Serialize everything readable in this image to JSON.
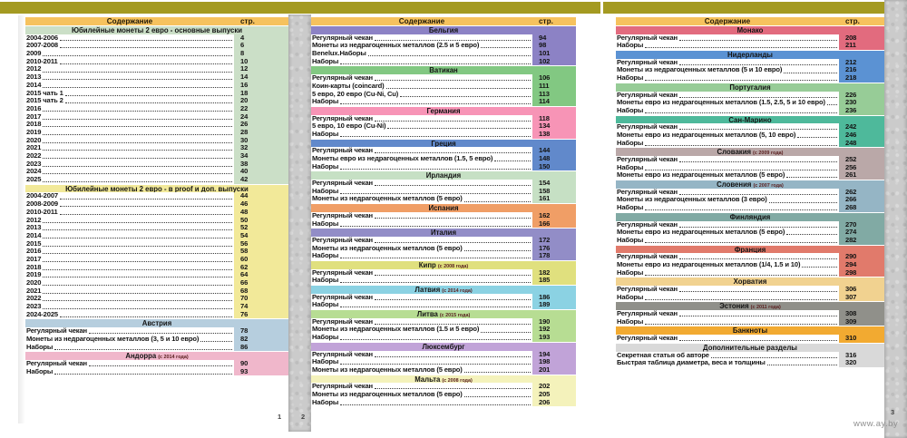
{
  "page": {
    "watermark": "www.ay.by",
    "scan_numbers": [
      "1",
      "2",
      "3"
    ],
    "top_band_color": "#a49a21",
    "header_bg": "#f6c25e",
    "gutter_color": "#cbcbcb"
  },
  "columns": [
    {
      "header": {
        "title": "Содержание",
        "page_label": "стр."
      },
      "sections": [
        {
          "title": "Юбилейные монеты 2 евро - основные выпуски",
          "note": "",
          "color": "#cbdfc7",
          "items": [
            {
              "label": "2004-2006",
              "page": "4"
            },
            {
              "label": "2007-2008",
              "page": "6"
            },
            {
              "label": "2009",
              "page": "8"
            },
            {
              "label": "2010-2011",
              "page": "10"
            },
            {
              "label": "2012",
              "page": "12"
            },
            {
              "label": "2013",
              "page": "14"
            },
            {
              "label": "2014",
              "page": "16"
            },
            {
              "label": "2015 чать 1",
              "page": "18"
            },
            {
              "label": "2015 чать 2",
              "page": "20"
            },
            {
              "label": "2016",
              "page": "22"
            },
            {
              "label": "2017",
              "page": "24"
            },
            {
              "label": "2018",
              "page": "26"
            },
            {
              "label": "2019",
              "page": "28"
            },
            {
              "label": "2020",
              "page": "30"
            },
            {
              "label": "2021",
              "page": "32"
            },
            {
              "label": "2022",
              "page": "34"
            },
            {
              "label": "2023",
              "page": "38"
            },
            {
              "label": "2024",
              "page": "40"
            },
            {
              "label": "2025",
              "page": "42"
            }
          ]
        },
        {
          "title": "Юбилейные монеты 2 евро - в proof и доп. выпуски",
          "note": "",
          "color": "#f2e999",
          "items": [
            {
              "label": "2004-2007",
              "page": "44"
            },
            {
              "label": "2008-2009",
              "page": "46"
            },
            {
              "label": "2010-2011",
              "page": "48"
            },
            {
              "label": "2012",
              "page": "50"
            },
            {
              "label": "2013",
              "page": "52"
            },
            {
              "label": "2014",
              "page": "54"
            },
            {
              "label": "2015",
              "page": "56"
            },
            {
              "label": "2016",
              "page": "58"
            },
            {
              "label": "2017",
              "page": "60"
            },
            {
              "label": "2018",
              "page": "62"
            },
            {
              "label": "2019",
              "page": "64"
            },
            {
              "label": "2020",
              "page": "66"
            },
            {
              "label": "2021",
              "page": "68"
            },
            {
              "label": "2022",
              "page": "70"
            },
            {
              "label": "2023",
              "page": "74"
            },
            {
              "label": "2024-2025",
              "page": "76"
            }
          ]
        },
        {
          "title": "Австрия",
          "note": "",
          "color": "#b6cede",
          "items": [
            {
              "label": "Регулярный чекан",
              "page": "78"
            },
            {
              "label": "Монеты из недрагоценных металлов (3, 5 и 10 евро)",
              "page": "82"
            },
            {
              "label": "Наборы",
              "page": "86"
            }
          ]
        },
        {
          "title": "Андорра",
          "note": "(с 2014 года)",
          "color": "#f0b7cb",
          "items": [
            {
              "label": "Регулярный чекан",
              "page": "90"
            },
            {
              "label": "Наборы",
              "page": "93"
            }
          ]
        }
      ]
    },
    {
      "header": {
        "title": "Содержание",
        "page_label": "стр."
      },
      "sections": [
        {
          "title": "Бельгия",
          "note": "",
          "color": "#8c82c5",
          "items": [
            {
              "label": "Регулярный чекан",
              "page": "94"
            },
            {
              "label": "Монеты из недрагоценных металлов (2.5 и 5 евро)",
              "page": "98"
            },
            {
              "label": "Benelux.Наборы",
              "page": "101"
            },
            {
              "label": "Наборы",
              "page": "102"
            }
          ]
        },
        {
          "title": "Ватикан",
          "note": "",
          "color": "#82c882",
          "items": [
            {
              "label": "Регулярный чекан",
              "page": "106"
            },
            {
              "label": "Коин-карты (coincard)",
              "page": "111"
            },
            {
              "label": "5 евро, 20 евро (Cu-Ni, Cu)",
              "page": "113"
            },
            {
              "label": "Наборы",
              "page": "114"
            }
          ]
        },
        {
          "title": "Германия",
          "note": "",
          "color": "#f794b6",
          "items": [
            {
              "label": "Регулярный чекан",
              "page": "118"
            },
            {
              "label": "5 евро, 10 евро (Cu-Ni)",
              "page": "134"
            },
            {
              "label": "Наборы",
              "page": "138"
            }
          ]
        },
        {
          "title": "Греция",
          "note": "",
          "color": "#6189cb",
          "items": [
            {
              "label": "Регулярный чекан",
              "page": "144"
            },
            {
              "label": "Монеты евро из недрагоценных металлов (1.5, 5 евро)",
              "page": "148"
            },
            {
              "label": "Наборы",
              "page": "150"
            }
          ]
        },
        {
          "title": "Ирландия",
          "note": "",
          "color": "#c6e0c4",
          "items": [
            {
              "label": "Регулярный чекан",
              "page": "154"
            },
            {
              "label": "Наборы",
              "page": "158"
            },
            {
              "label": "Монеты из недрагоценных металлов (5 евро)",
              "page": "161"
            }
          ]
        },
        {
          "title": "Испания",
          "note": "",
          "color": "#f09e66",
          "items": [
            {
              "label": "Регулярный чекан",
              "page": "162"
            },
            {
              "label": "Наборы",
              "page": "166"
            }
          ]
        },
        {
          "title": "Италия",
          "note": "",
          "color": "#928dc7",
          "items": [
            {
              "label": "Регулярный чекан",
              "page": "172"
            },
            {
              "label": "Монеты из недрагоценных металлов (5 евро)",
              "page": "176"
            },
            {
              "label": "Наборы",
              "page": "178"
            }
          ]
        },
        {
          "title": "Кипр",
          "note": "(с 2008 года)",
          "color": "#e0e07e",
          "items": [
            {
              "label": "Регулярный чекан",
              "page": "182"
            },
            {
              "label": "Наборы",
              "page": "185"
            }
          ]
        },
        {
          "title": "Латвия",
          "note": "(с 2014 года)",
          "color": "#8bd2e3",
          "items": [
            {
              "label": "Регулярный чекан",
              "page": "186"
            },
            {
              "label": "Наборы",
              "page": "189"
            }
          ]
        },
        {
          "title": "Литва",
          "note": "(с 2015 года)",
          "color": "#b7dd93",
          "items": [
            {
              "label": "Регулярный чекан",
              "page": "190"
            },
            {
              "label": "Монеты из недрагоценных металлов (1.5 и 5 евро)",
              "page": "192"
            },
            {
              "label": "Наборы",
              "page": "193"
            }
          ]
        },
        {
          "title": "Люксембург",
          "note": "",
          "color": "#c1a3d8",
          "items": [
            {
              "label": "Регулярный чекан",
              "page": "194"
            },
            {
              "label": "Наборы",
              "page": "198"
            },
            {
              "label": "Монеты из недрагоценных металлов (5 евро)",
              "page": "201"
            }
          ]
        },
        {
          "title": "Мальта",
          "note": "(с 2008 года)",
          "color": "#f4f2bb",
          "items": [
            {
              "label": "Регулярный чекан",
              "page": "202"
            },
            {
              "label": "Монеты из недрагоценных металлов (5 евро)",
              "page": "205"
            },
            {
              "label": "Наборы",
              "page": "206"
            }
          ]
        }
      ]
    },
    {
      "header": {
        "title": "Содержание",
        "page_label": "стр."
      },
      "sections": [
        {
          "title": "Монако",
          "note": "",
          "color": "#e26b7e",
          "items": [
            {
              "label": "Регулярный чекан",
              "page": "208"
            },
            {
              "label": "Наборы",
              "page": "211"
            }
          ]
        },
        {
          "title": "Нидерланды",
          "note": "",
          "color": "#5b92d3",
          "items": [
            {
              "label": "Регулярный чекан",
              "page": "212"
            },
            {
              "label": "Монеты из недрагоценных металлов (5 и 10 евро)",
              "page": "216"
            },
            {
              "label": "Наборы",
              "page": "218"
            }
          ]
        },
        {
          "title": "Португалия",
          "note": "",
          "color": "#97cc97",
          "items": [
            {
              "label": "Регулярный чекан",
              "page": "226"
            },
            {
              "label": "Монеты евро из недрагоценных металлов (1.5, 2.5, 5 и 10 евро)",
              "page": "230"
            },
            {
              "label": "Наборы",
              "page": "236"
            }
          ]
        },
        {
          "title": "Сан-Марино",
          "note": "",
          "color": "#4eb99b",
          "items": [
            {
              "label": "Регулярный чекан",
              "page": "242"
            },
            {
              "label": "Монеты евро из недрагоценных металлов (5, 10 евро)",
              "page": "246"
            },
            {
              "label": "Наборы",
              "page": "248"
            }
          ]
        },
        {
          "title": "Словакия",
          "note": "(с 2009 года)",
          "color": "#baa8a8",
          "items": [
            {
              "label": "Регулярный чекан",
              "page": "252"
            },
            {
              "label": "Наборы",
              "page": "256"
            },
            {
              "label": "Монеты евро из недрагоценных металлов (5 евро)",
              "page": "261"
            }
          ]
        },
        {
          "title": "Словения",
          "note": "(с 2007 года)",
          "color": "#95b5c5",
          "items": [
            {
              "label": "Регулярный чекан",
              "page": "262"
            },
            {
              "label": "Монеты из недрагоценных металлов (3 евро)",
              "page": "266"
            },
            {
              "label": "Наборы",
              "page": "268"
            }
          ]
        },
        {
          "title": "Финляндия",
          "note": "",
          "color": "#81aaa4",
          "items": [
            {
              "label": "Регулярный чекан",
              "page": "270"
            },
            {
              "label": "Монеты евро из недрагоценных металлов (5 евро)",
              "page": "274"
            },
            {
              "label": "Наборы",
              "page": "282"
            }
          ]
        },
        {
          "title": "Франция",
          "note": "",
          "color": "#e17a6b",
          "items": [
            {
              "label": "Регулярный чекан",
              "page": "290"
            },
            {
              "label": "Монеты евро из недрагоценных металлов (1/4, 1.5 и 10)",
              "page": "294"
            },
            {
              "label": "Наборы",
              "page": "298"
            }
          ]
        },
        {
          "title": "Хорватия",
          "note": "",
          "color": "#f1d290",
          "items": [
            {
              "label": "Регулярный чекан",
              "page": "306"
            },
            {
              "label": "Наборы",
              "page": "307"
            }
          ]
        },
        {
          "title": "Эстония",
          "note": "(с 2011 года)",
          "color": "#90908a",
          "items": [
            {
              "label": "Регулярный чекан",
              "page": "308"
            },
            {
              "label": "Наборы",
              "page": "309"
            }
          ]
        },
        {
          "title": "Банкноты",
          "note": "",
          "color": "#f2aa31",
          "items": [
            {
              "label": "Регулярный чекан",
              "page": "310"
            }
          ]
        },
        {
          "title": "Дополнительные разделы",
          "note": "",
          "color": "#d9d9d9",
          "items": [
            {
              "label": "Секретная статья об авторе",
              "page": "316"
            },
            {
              "label": "Быстрая таблица диаметра, веса и толщины",
              "page": "320"
            }
          ]
        }
      ]
    }
  ]
}
